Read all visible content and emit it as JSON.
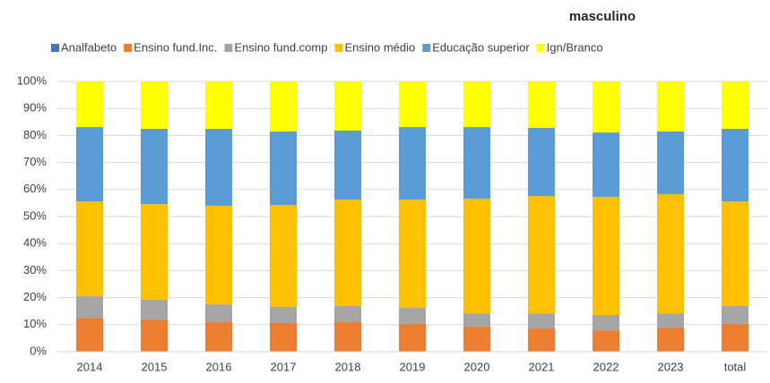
{
  "chart_data": {
    "type": "stacked_bar",
    "title": "masculino",
    "categories": [
      "2014",
      "2015",
      "2016",
      "2017",
      "2018",
      "2019",
      "2020",
      "2021",
      "2022",
      "2023",
      "total"
    ],
    "series": [
      {
        "name": "Analfabeto",
        "color": "#4472c4",
        "values": [
          0.3,
          0.3,
          0.3,
          0.3,
          0.3,
          0.3,
          0.3,
          0.3,
          0.3,
          0.3,
          0.3
        ]
      },
      {
        "name": "Ensino fund.Inc.",
        "color": "#ed7d31",
        "values": [
          12.2,
          11.6,
          10.6,
          10.3,
          10.6,
          10.0,
          9.0,
          8.3,
          7.6,
          8.6,
          10.0
        ]
      },
      {
        "name": "Ensino fund.comp",
        "color": "#a5a5a5",
        "values": [
          8.0,
          7.3,
          6.6,
          6.0,
          6.0,
          5.9,
          4.9,
          5.6,
          5.7,
          5.3,
          6.6
        ]
      },
      {
        "name": "Ensino médio",
        "color": "#ffc000",
        "values": [
          35.1,
          35.4,
          36.5,
          37.7,
          39.4,
          40.1,
          42.4,
          43.4,
          43.7,
          44.1,
          38.7
        ]
      },
      {
        "name": "Educação superior",
        "color": "#5b9bd5",
        "values": [
          27.5,
          27.9,
          28.5,
          27.2,
          25.5,
          26.8,
          26.5,
          25.2,
          23.8,
          23.2,
          26.9
        ]
      },
      {
        "name": "Ign/Branco",
        "color": "#ffff00",
        "values": [
          16.9,
          17.5,
          17.5,
          18.5,
          18.2,
          16.9,
          16.9,
          17.2,
          18.9,
          18.5,
          17.5
        ]
      }
    ],
    "ylim": [
      0,
      100
    ],
    "yticks": [
      {
        "value": 0,
        "label": "0%"
      },
      {
        "value": 10,
        "label": "10%"
      },
      {
        "value": 20,
        "label": "20%"
      },
      {
        "value": 30,
        "label": "30%"
      },
      {
        "value": 40,
        "label": "40%"
      },
      {
        "value": 50,
        "label": "50%"
      },
      {
        "value": 60,
        "label": "60%"
      },
      {
        "value": 70,
        "label": "70%"
      },
      {
        "value": 80,
        "label": "80%"
      },
      {
        "value": 90,
        "label": "90%"
      },
      {
        "value": 100,
        "label": "100%"
      }
    ],
    "grid": true,
    "legend": "top"
  }
}
